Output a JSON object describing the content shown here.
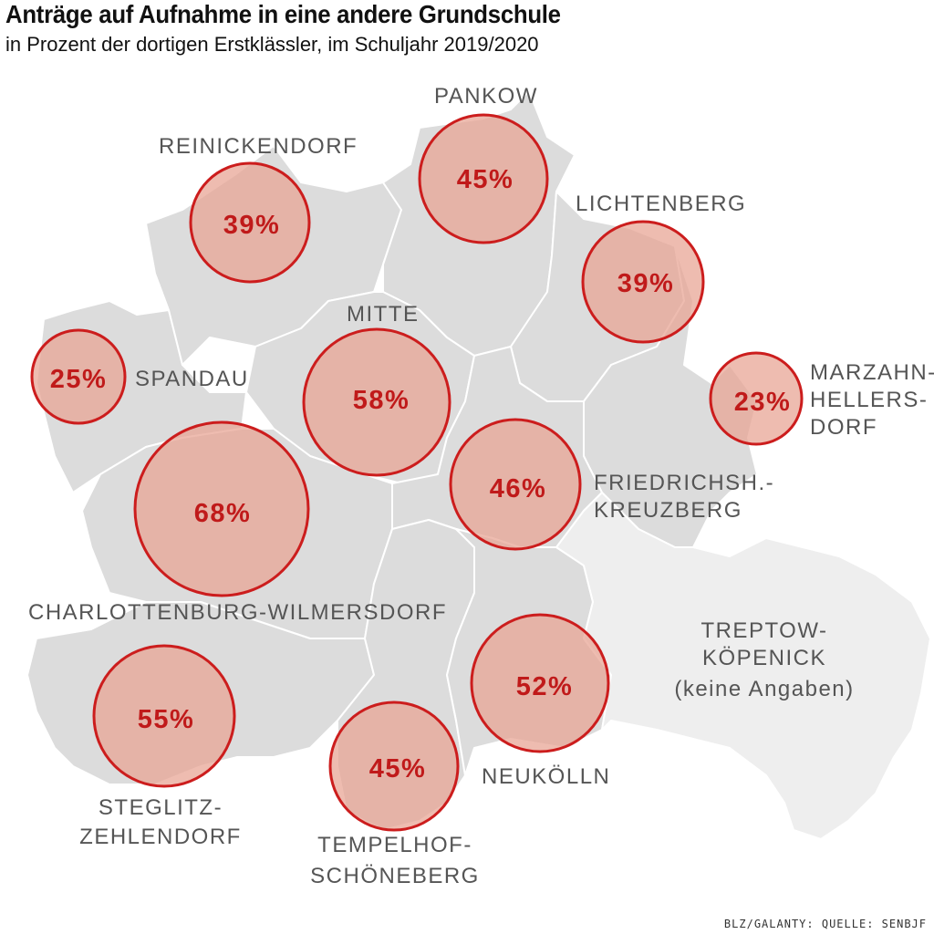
{
  "title": "Anträge auf Aufnahme in eine andere Grundschule",
  "subtitle": "in Prozent der dortigen Erstklässler, im Schuljahr 2019/2020",
  "credit": "BLZ/GALANTY: QUELLE: SENBJF",
  "colors": {
    "land": "#dcdcdc",
    "land_nodata": "#eeeeee",
    "border": "#ffffff",
    "bubble_fill": "#e8a596",
    "bubble_stroke": "#cc1d1d",
    "value_text": "#c01a1a",
    "label_text": "#555555"
  },
  "districts": [
    {
      "id": "pankow",
      "name_lines": [
        "PANKOW"
      ],
      "value": "45%"
    },
    {
      "id": "reinickendorf",
      "name_lines": [
        "REINICKENDORF"
      ],
      "value": "39%"
    },
    {
      "id": "lichtenberg",
      "name_lines": [
        "LICHTENBERG"
      ],
      "value": "39%"
    },
    {
      "id": "mitte",
      "name_lines": [
        "MITTE"
      ],
      "value": "58%"
    },
    {
      "id": "spandau",
      "name_lines": [
        "SPANDAU"
      ],
      "value": "25%"
    },
    {
      "id": "marzahn-hellersdorf",
      "name_lines": [
        "MARZAHN-",
        "HELLERS-",
        "DORF"
      ],
      "value": "23%"
    },
    {
      "id": "charlottenburg-wilmersdorf",
      "name_lines": [
        "CHARLOTTENBURG-WILMERSDORF"
      ],
      "value": "68%"
    },
    {
      "id": "friedrichshain-kreuzberg",
      "name_lines": [
        "FRIEDRICHSH.-",
        "KREUZBERG"
      ],
      "value": "46%"
    },
    {
      "id": "treptow-koepenick",
      "name_lines": [
        "TREPTOW-",
        "KÖPENICK",
        "(keine Angaben)"
      ],
      "value": ""
    },
    {
      "id": "neukoelln",
      "name_lines": [
        "NEUKÖLLN"
      ],
      "value": "52%"
    },
    {
      "id": "steglitz-zehlendorf",
      "name_lines": [
        "STEGLITZ-",
        "ZEHLENDORF"
      ],
      "value": "55%"
    },
    {
      "id": "tempelhof-schoeneberg",
      "name_lines": [
        "TEMPELHOF-",
        "SCHÖNEBERG"
      ],
      "value": "45%"
    }
  ]
}
